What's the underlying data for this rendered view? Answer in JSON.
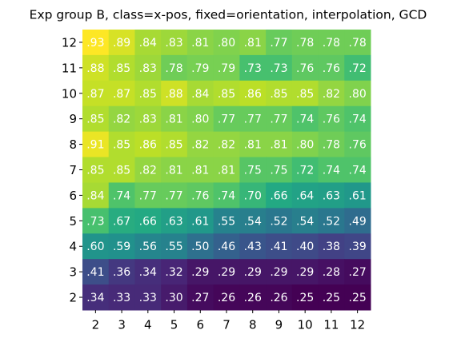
{
  "chart_data": {
    "type": "heatmap",
    "title": "Exp group B, class=x-pos, fixed=orientation, interpolation, GCD",
    "colormap": "viridis",
    "x_categories": [
      2,
      3,
      4,
      5,
      6,
      7,
      8,
      9,
      10,
      11,
      12
    ],
    "y_categories": [
      12,
      11,
      10,
      9,
      8,
      7,
      6,
      5,
      4,
      3,
      2
    ],
    "values": [
      [
        0.93,
        0.89,
        0.84,
        0.83,
        0.81,
        0.8,
        0.81,
        0.77,
        0.78,
        0.78,
        0.78
      ],
      [
        0.88,
        0.85,
        0.83,
        0.78,
        0.79,
        0.79,
        0.73,
        0.73,
        0.76,
        0.76,
        0.72
      ],
      [
        0.87,
        0.87,
        0.85,
        0.88,
        0.84,
        0.85,
        0.86,
        0.85,
        0.85,
        0.82,
        0.8
      ],
      [
        0.85,
        0.82,
        0.83,
        0.81,
        0.8,
        0.77,
        0.77,
        0.77,
        0.74,
        0.76,
        0.74
      ],
      [
        0.91,
        0.85,
        0.86,
        0.85,
        0.82,
        0.82,
        0.81,
        0.81,
        0.8,
        0.78,
        0.76
      ],
      [
        0.85,
        0.85,
        0.82,
        0.81,
        0.81,
        0.81,
        0.75,
        0.75,
        0.72,
        0.74,
        0.74
      ],
      [
        0.84,
        0.74,
        0.77,
        0.77,
        0.76,
        0.74,
        0.7,
        0.66,
        0.64,
        0.63,
        0.61
      ],
      [
        0.73,
        0.67,
        0.66,
        0.63,
        0.61,
        0.55,
        0.54,
        0.52,
        0.54,
        0.52,
        0.49
      ],
      [
        0.6,
        0.59,
        0.56,
        0.55,
        0.5,
        0.46,
        0.43,
        0.41,
        0.4,
        0.38,
        0.39
      ],
      [
        0.41,
        0.36,
        0.34,
        0.32,
        0.29,
        0.29,
        0.29,
        0.29,
        0.29,
        0.28,
        0.27
      ],
      [
        0.34,
        0.33,
        0.33,
        0.3,
        0.27,
        0.26,
        0.26,
        0.26,
        0.25,
        0.25,
        0.25
      ]
    ],
    "value_labels": [
      [
        ".93",
        ".89",
        ".84",
        ".83",
        ".81",
        ".80",
        ".81",
        ".77",
        ".78",
        ".78",
        ".78"
      ],
      [
        ".88",
        ".85",
        ".83",
        ".78",
        ".79",
        ".79",
        ".73",
        ".73",
        ".76",
        ".76",
        ".72"
      ],
      [
        ".87",
        ".87",
        ".85",
        ".88",
        ".84",
        ".85",
        ".86",
        ".85",
        ".85",
        ".82",
        ".80"
      ],
      [
        ".85",
        ".82",
        ".83",
        ".81",
        ".80",
        ".77",
        ".77",
        ".77",
        ".74",
        ".76",
        ".74"
      ],
      [
        ".91",
        ".85",
        ".86",
        ".85",
        ".82",
        ".82",
        ".81",
        ".81",
        ".80",
        ".78",
        ".76"
      ],
      [
        ".85",
        ".85",
        ".82",
        ".81",
        ".81",
        ".81",
        ".75",
        ".75",
        ".72",
        ".74",
        ".74"
      ],
      [
        ".84",
        ".74",
        ".77",
        ".77",
        ".76",
        ".74",
        ".70",
        ".66",
        ".64",
        ".63",
        ".61"
      ],
      [
        ".73",
        ".67",
        ".66",
        ".63",
        ".61",
        ".55",
        ".54",
        ".52",
        ".54",
        ".52",
        ".49"
      ],
      [
        ".60",
        ".59",
        ".56",
        ".55",
        ".50",
        ".46",
        ".43",
        ".41",
        ".40",
        ".38",
        ".39"
      ],
      [
        ".41",
        ".36",
        ".34",
        ".32",
        ".29",
        ".29",
        ".29",
        ".29",
        ".29",
        ".28",
        ".27"
      ],
      [
        ".34",
        ".33",
        ".33",
        ".30",
        ".27",
        ".26",
        ".26",
        ".26",
        ".25",
        ".25",
        ".25"
      ]
    ]
  }
}
